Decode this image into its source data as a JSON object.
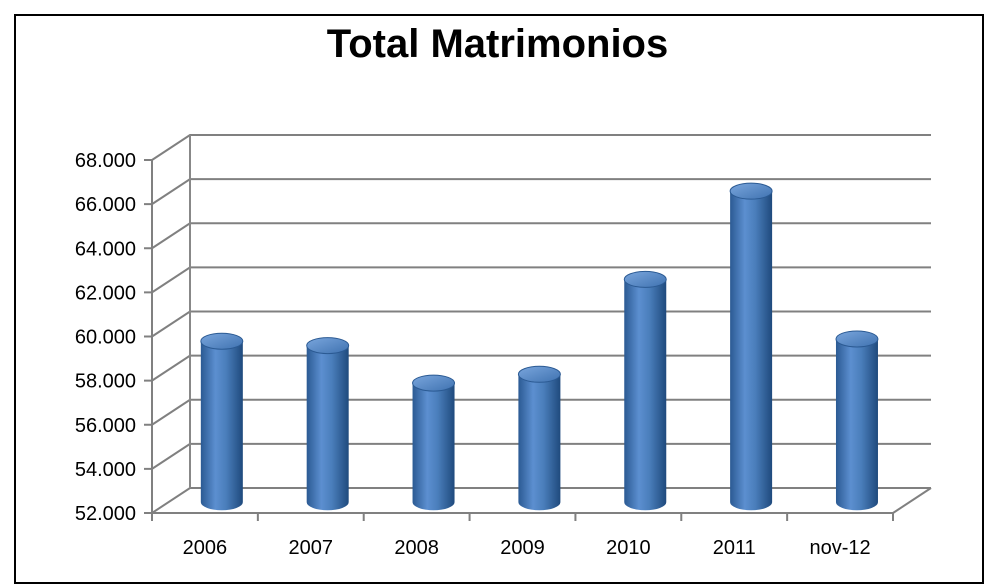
{
  "chart_data": {
    "type": "bar",
    "title": "Total Matrimonios",
    "categories": [
      "2006",
      "2007",
      "2008",
      "2009",
      "2010",
      "2011",
      "nov-12"
    ],
    "values": [
      59300,
      59100,
      57400,
      57800,
      62100,
      66100,
      59400
    ],
    "ylim": [
      52000,
      68000
    ],
    "yticks": [
      52000,
      54000,
      56000,
      58000,
      60000,
      62000,
      64000,
      66000,
      68000
    ],
    "ytick_labels": [
      "52.000",
      "54.000",
      "56.000",
      "58.000",
      "60.000",
      "62.000",
      "64.000",
      "66.000",
      "68.000"
    ],
    "xlabel": "",
    "ylabel": "",
    "grid": true,
    "legend": "none",
    "bar_shape": "cylinder",
    "bar_color": "#4a7ebb"
  }
}
